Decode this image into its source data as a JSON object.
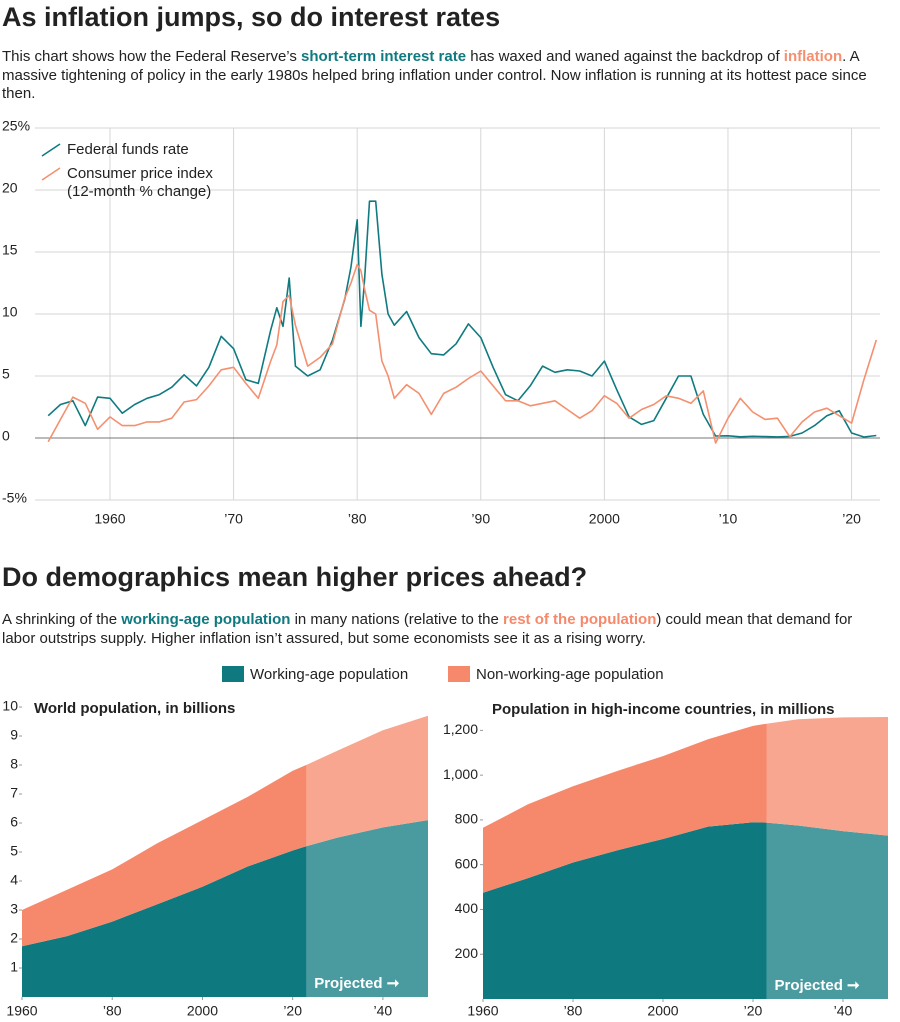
{
  "chart_data": [
    {
      "type": "line",
      "title": "As inflation jumps, so do interest rates",
      "description": [
        "This chart shows how the Federal Reserve’s ",
        "short-term interest rate",
        " has waxed and waned against the backdrop of ",
        "inflation",
        ". A massive tightening of policy in the early 1980s helped bring inflation under control. Now inflation is running at its hottest pace since then."
      ],
      "x": [
        1955,
        1956,
        1957,
        1958,
        1959,
        1960,
        1961,
        1962,
        1963,
        1964,
        1965,
        1966,
        1967,
        1968,
        1969,
        1970,
        1971,
        1972,
        1973,
        1973.5,
        1974,
        1974.5,
        1975,
        1976,
        1977,
        1978,
        1979,
        1979.5,
        1980,
        1980.3,
        1980.6,
        1981,
        1981.5,
        1982,
        1982.5,
        1983,
        1984,
        1985,
        1986,
        1987,
        1988,
        1989,
        1990,
        1991,
        1992,
        1993,
        1994,
        1995,
        1996,
        1997,
        1998,
        1999,
        2000,
        2001,
        2002,
        2003,
        2004,
        2005,
        2006,
        2007,
        2008,
        2009,
        2010,
        2011,
        2012,
        2013,
        2014,
        2015,
        2016,
        2017,
        2018,
        2019,
        2020,
        2021,
        2022
      ],
      "series": [
        {
          "name": "Federal funds rate",
          "color": "#0f7b80",
          "values": [
            1.8,
            2.7,
            3.0,
            1.0,
            3.3,
            3.2,
            2.0,
            2.7,
            3.2,
            3.5,
            4.1,
            5.1,
            4.2,
            5.7,
            8.2,
            7.2,
            4.7,
            4.4,
            8.7,
            10.5,
            9.0,
            12.9,
            5.8,
            5.0,
            5.5,
            7.9,
            11.2,
            13.8,
            17.6,
            9.0,
            12.8,
            19.1,
            19.1,
            13.2,
            10.0,
            9.1,
            10.2,
            8.1,
            6.8,
            6.7,
            7.6,
            9.2,
            8.1,
            5.7,
            3.5,
            3.0,
            4.2,
            5.8,
            5.3,
            5.5,
            5.4,
            5.0,
            6.2,
            3.9,
            1.7,
            1.1,
            1.4,
            3.2,
            5.0,
            5.0,
            1.9,
            0.16,
            0.18,
            0.1,
            0.14,
            0.11,
            0.09,
            0.13,
            0.4,
            1.0,
            1.8,
            2.2,
            0.4,
            0.08,
            0.2
          ]
        },
        {
          "name": "Consumer price index (12-month % change)",
          "color": "#f4906f",
          "values": [
            -0.3,
            1.5,
            3.3,
            2.8,
            0.7,
            1.7,
            1.0,
            1.0,
            1.3,
            1.3,
            1.6,
            2.9,
            3.1,
            4.2,
            5.5,
            5.7,
            4.4,
            3.2,
            6.2,
            7.5,
            11.0,
            11.5,
            9.1,
            5.8,
            6.5,
            7.6,
            11.3,
            12.5,
            14.0,
            13.5,
            12.0,
            10.3,
            10.0,
            6.2,
            5.0,
            3.2,
            4.3,
            3.6,
            1.9,
            3.6,
            4.1,
            4.8,
            5.4,
            4.2,
            3.0,
            3.0,
            2.6,
            2.8,
            3.0,
            2.3,
            1.6,
            2.2,
            3.4,
            2.8,
            1.6,
            2.3,
            2.7,
            3.4,
            3.2,
            2.8,
            3.8,
            -0.4,
            1.6,
            3.2,
            2.1,
            1.5,
            1.6,
            0.1,
            1.3,
            2.1,
            2.4,
            1.8,
            1.2,
            4.7,
            7.9
          ]
        }
      ],
      "xlim": [
        1954.5,
        2022.3
      ],
      "xticks": [
        1960,
        {
          "value": 1970,
          "label": "’70"
        },
        {
          "value": 1980,
          "label": "’80"
        },
        {
          "value": 1990,
          "label": "’90"
        },
        2000,
        {
          "value": 2010,
          "label": "’10"
        },
        {
          "value": 2020,
          "label": "’20"
        }
      ],
      "ylim": [
        -5,
        25
      ],
      "yticks": [
        {
          "value": 25,
          "label": "25%"
        },
        20,
        15,
        10,
        5,
        0,
        {
          "value": -5,
          "label": "-5%"
        }
      ],
      "grid": true
    },
    {
      "type": "stacked_area",
      "title": "Do demographics mean higher prices ahead?",
      "description": [
        "A shrinking of the ",
        "working-age population",
        " in many nations (relative to the ",
        "rest of the population",
        ") could mean that demand for labor outstrips supply. Higher inflation isn’t assured, but some economists see it as a rising worry."
      ],
      "series": [
        {
          "name": "Working-age population",
          "color": "#0e7a80"
        },
        {
          "name": "Non-working-age population",
          "color": "#f6896b"
        }
      ],
      "projected_from": 2023,
      "annotation": "Projected ➞",
      "panels": [
        {
          "subtitle": "World population, in billions",
          "x": [
            1960,
            1970,
            1980,
            1990,
            2000,
            2010,
            2020,
            2023,
            2030,
            2040,
            2050
          ],
          "values": [
            [
              1.75,
              2.1,
              2.6,
              3.2,
              3.8,
              4.5,
              5.05,
              5.2,
              5.5,
              5.85,
              6.1
            ],
            [
              1.25,
              1.6,
              1.8,
              2.1,
              2.3,
              2.4,
              2.75,
              2.8,
              3.0,
              3.35,
              3.6
            ]
          ],
          "xlim": [
            1960,
            2050
          ],
          "xticks": [
            1960,
            {
              "value": 1980,
              "label": "’80"
            },
            2000,
            {
              "value": 2020,
              "label": "’20"
            },
            {
              "value": 2040,
              "label": "’40"
            }
          ],
          "ylim": [
            0,
            10
          ],
          "yticks": [
            1,
            2,
            3,
            4,
            5,
            6,
            7,
            8,
            9,
            10
          ]
        },
        {
          "subtitle": "Population in high-income countries, in millions",
          "x": [
            1960,
            1970,
            1980,
            1990,
            2000,
            2010,
            2020,
            2023,
            2030,
            2040,
            2050
          ],
          "values": [
            [
              475,
              540,
              610,
              665,
              715,
              770,
              790,
              788,
              775,
              750,
              730
            ],
            [
              290,
              330,
              340,
              355,
              370,
              390,
              430,
              442,
              475,
              508,
              530
            ]
          ],
          "xlim": [
            1960,
            2050
          ],
          "xticks": [
            1960,
            {
              "value": 1980,
              "label": "’80"
            },
            2000,
            {
              "value": 2020,
              "label": "’20"
            },
            {
              "value": 2040,
              "label": "’40"
            }
          ],
          "ylim": [
            0,
            1300
          ],
          "yticks": [
            200,
            400,
            600,
            800,
            {
              "value": 1000,
              "label": "1,000"
            },
            {
              "value": 1200,
              "label": "1,200"
            }
          ]
        }
      ]
    }
  ]
}
